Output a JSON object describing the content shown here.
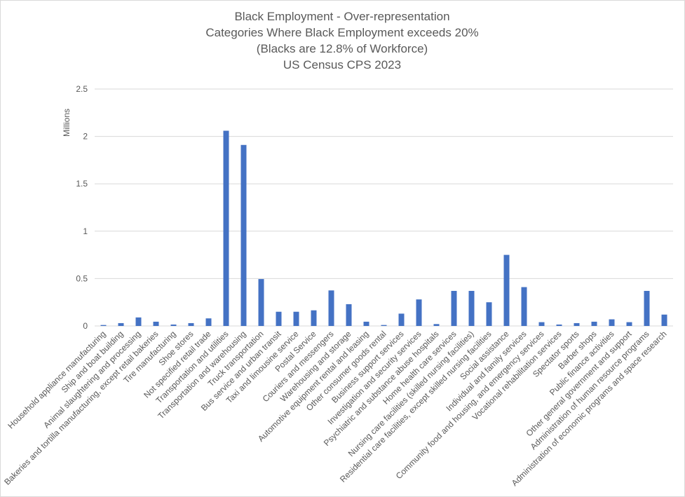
{
  "chart_data": {
    "type": "bar",
    "title": [
      "Black Employment - Over-representation",
      "Categories Where Black Employment exceeds 20%",
      "(Blacks are 12.8% of Workforce)",
      "US Census CPS 2023"
    ],
    "xlabel": "",
    "ylabel": "Millions",
    "ylim": [
      0,
      2.5
    ],
    "yticks": [
      "0",
      "0.5",
      "1",
      "1.5",
      "2",
      "2.5"
    ],
    "grid": true,
    "bar_color": "#4472C4",
    "categories": [
      "Household appliance manufacturing",
      "Ship and boat building",
      "Animal slaughtering and processing",
      "Bakeries and tortilla manufacturing, except retail bakeries",
      "Tire manufacturing",
      "Shoe stores",
      "Not specified retail trade",
      "Transportation and utilities",
      "Transportation and warehousing",
      "Truck transportation",
      "Bus service and urban transit",
      "Taxi and limousine service",
      "Postal Service",
      "Couriers and messengers",
      "Warehousing and storage",
      "Automotive equipment rental and leasing",
      "Other consumer goods rental",
      "Business support services",
      "Investigation and security services",
      "Psychiatric and substance abuse hospitals",
      "Home health care services",
      "Nursing care facilities (skilled nursing facilities)",
      "Residential care facilities, except skilled nursing facilities",
      "Social assistance",
      "Individual and family services",
      "Community food and housing, and emergency services",
      "Vocational rehabilitation services",
      "Spectator sports",
      "Barber shops",
      "Public finance activities",
      "Other general government and support",
      "Administration of human resource programs",
      "Administration of economic programs and space research"
    ],
    "values": [
      0.01,
      0.03,
      0.09,
      0.045,
      0.015,
      0.03,
      0.08,
      2.06,
      1.91,
      0.495,
      0.15,
      0.15,
      0.165,
      0.375,
      0.23,
      0.045,
      0.01,
      0.13,
      0.28,
      0.02,
      0.37,
      0.37,
      0.25,
      0.75,
      0.41,
      0.04,
      0.015,
      0.03,
      0.045,
      0.07,
      0.04,
      0.37,
      0.12
    ]
  }
}
